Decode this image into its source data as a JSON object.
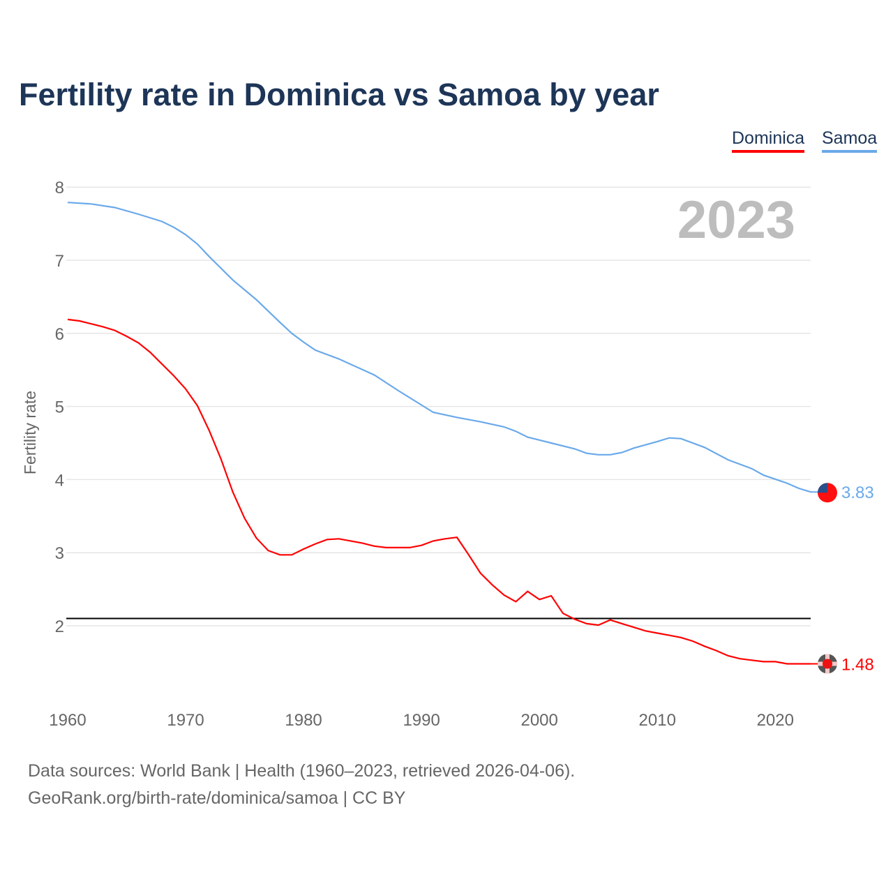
{
  "title": "Fertility rate in Dominica vs Samoa by year",
  "source_line1": "Data sources: World Bank | Health (1960–2023, retrieved 2026-04-06).",
  "source_line2": "GeoRank.org/birth-rate/dominica/samoa | CC BY",
  "chart_data": {
    "type": "line",
    "title": "Fertility rate in Dominica vs Samoa by year",
    "xlabel": "",
    "ylabel": "Fertility rate",
    "year_label": "2023",
    "xlim": [
      1960,
      2023
    ],
    "ylim": [
      1,
      8
    ],
    "x_ticks": [
      1960,
      1970,
      1980,
      1990,
      2000,
      2010,
      2020
    ],
    "y_ticks": [
      2,
      3,
      4,
      5,
      6,
      7,
      8
    ],
    "grid": true,
    "legend_position": "top-right",
    "reference_line": {
      "value": 2.1,
      "color": "#000000"
    },
    "series": [
      {
        "name": "Dominica",
        "color": "#ff0000",
        "end_label": "1.48",
        "points": [
          [
            1960,
            6.19
          ],
          [
            1961,
            6.17
          ],
          [
            1962,
            6.13
          ],
          [
            1963,
            6.09
          ],
          [
            1964,
            6.04
          ],
          [
            1965,
            5.96
          ],
          [
            1966,
            5.87
          ],
          [
            1967,
            5.74
          ],
          [
            1968,
            5.58
          ],
          [
            1969,
            5.42
          ],
          [
            1970,
            5.24
          ],
          [
            1971,
            5.01
          ],
          [
            1972,
            4.67
          ],
          [
            1973,
            4.28
          ],
          [
            1974,
            3.83
          ],
          [
            1975,
            3.47
          ],
          [
            1976,
            3.2
          ],
          [
            1977,
            3.03
          ],
          [
            1978,
            2.97
          ],
          [
            1979,
            2.97
          ],
          [
            1980,
            3.05
          ],
          [
            1981,
            3.12
          ],
          [
            1982,
            3.18
          ],
          [
            1983,
            3.19
          ],
          [
            1984,
            3.16
          ],
          [
            1985,
            3.13
          ],
          [
            1986,
            3.09
          ],
          [
            1987,
            3.07
          ],
          [
            1988,
            3.07
          ],
          [
            1989,
            3.07
          ],
          [
            1990,
            3.1
          ],
          [
            1991,
            3.16
          ],
          [
            1992,
            3.19
          ],
          [
            1993,
            3.21
          ],
          [
            1994,
            2.97
          ],
          [
            1995,
            2.72
          ],
          [
            1996,
            2.56
          ],
          [
            1997,
            2.42
          ],
          [
            1998,
            2.33
          ],
          [
            1999,
            2.47
          ],
          [
            2000,
            2.36
          ],
          [
            2001,
            2.41
          ],
          [
            2002,
            2.17
          ],
          [
            2003,
            2.09
          ],
          [
            2004,
            2.03
          ],
          [
            2005,
            2.01
          ],
          [
            2006,
            2.08
          ],
          [
            2007,
            2.03
          ],
          [
            2008,
            1.98
          ],
          [
            2009,
            1.93
          ],
          [
            2010,
            1.9
          ],
          [
            2011,
            1.87
          ],
          [
            2012,
            1.84
          ],
          [
            2013,
            1.79
          ],
          [
            2014,
            1.72
          ],
          [
            2015,
            1.66
          ],
          [
            2016,
            1.59
          ],
          [
            2017,
            1.55
          ],
          [
            2018,
            1.53
          ],
          [
            2019,
            1.51
          ],
          [
            2020,
            1.51
          ],
          [
            2021,
            1.48
          ],
          [
            2022,
            1.48
          ],
          [
            2023,
            1.48
          ]
        ]
      },
      {
        "name": "Samoa",
        "color": "#6aa9ea",
        "end_label": "3.83",
        "points": [
          [
            1960,
            7.79
          ],
          [
            1962,
            7.77
          ],
          [
            1964,
            7.72
          ],
          [
            1966,
            7.63
          ],
          [
            1968,
            7.53
          ],
          [
            1969,
            7.45
          ],
          [
            1970,
            7.35
          ],
          [
            1971,
            7.22
          ],
          [
            1972,
            7.05
          ],
          [
            1974,
            6.73
          ],
          [
            1976,
            6.46
          ],
          [
            1978,
            6.15
          ],
          [
            1979,
            6.0
          ],
          [
            1980,
            5.88
          ],
          [
            1981,
            5.77
          ],
          [
            1983,
            5.65
          ],
          [
            1986,
            5.43
          ],
          [
            1988,
            5.22
          ],
          [
            1991,
            4.92
          ],
          [
            1993,
            4.85
          ],
          [
            1995,
            4.79
          ],
          [
            1997,
            4.72
          ],
          [
            1998,
            4.66
          ],
          [
            1999,
            4.58
          ],
          [
            2001,
            4.5
          ],
          [
            2003,
            4.42
          ],
          [
            2004,
            4.36
          ],
          [
            2005,
            4.34
          ],
          [
            2006,
            4.34
          ],
          [
            2007,
            4.37
          ],
          [
            2008,
            4.43
          ],
          [
            2010,
            4.52
          ],
          [
            2011,
            4.57
          ],
          [
            2012,
            4.56
          ],
          [
            2014,
            4.44
          ],
          [
            2016,
            4.27
          ],
          [
            2018,
            4.15
          ],
          [
            2019,
            4.06
          ],
          [
            2021,
            3.95
          ],
          [
            2022,
            3.88
          ],
          [
            2023,
            3.83
          ]
        ]
      }
    ]
  }
}
